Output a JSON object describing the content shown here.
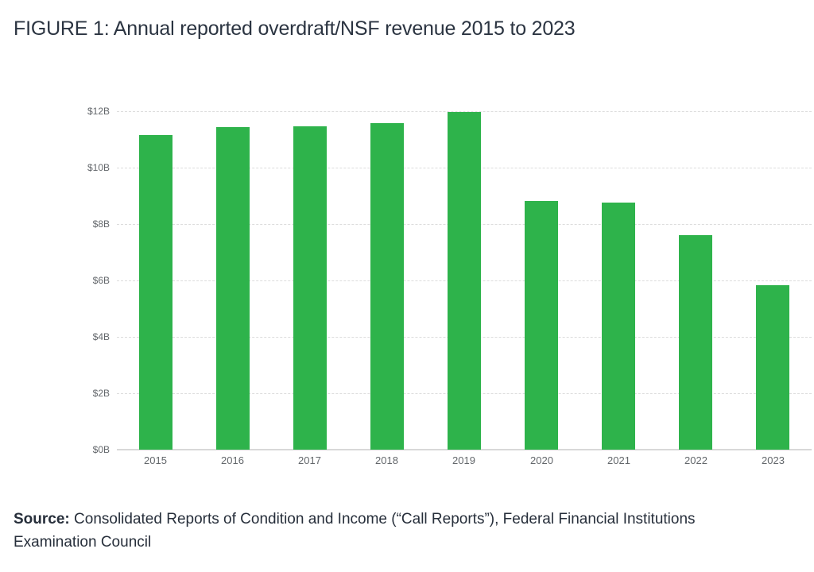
{
  "figure": {
    "title": "FIGURE 1: Annual reported overdraft/NSF revenue 2015 to 2023",
    "source_label": "Source:",
    "source_text": " Consolidated Reports of Condition and Income (“Call Reports”), Federal Financial Institutions Examination Council"
  },
  "colors": {
    "bar": "#2eb34b",
    "title_text": "#2b3441",
    "axis_label": "#63676b",
    "gridline": "#dcdcdc",
    "baseline": "#d8d8d8"
  },
  "chart_data": {
    "type": "bar",
    "title": "FIGURE 1: Annual reported overdraft/NSF revenue 2015 to 2023",
    "categories": [
      "2015",
      "2016",
      "2017",
      "2018",
      "2019",
      "2020",
      "2021",
      "2022",
      "2023"
    ],
    "values": [
      11.16,
      11.44,
      11.47,
      11.58,
      11.97,
      8.82,
      8.77,
      7.6,
      5.83
    ],
    "xlabel": "",
    "ylabel": "",
    "ylim": [
      0,
      12
    ],
    "yticks": [
      0,
      2,
      4,
      6,
      8,
      10,
      12
    ],
    "ytick_labels": [
      "$0B",
      "$2B",
      "$4B",
      "$6B",
      "$8B",
      "$10B",
      "$12B"
    ],
    "grid": true,
    "legend": null,
    "value_unit": "USD billions"
  }
}
